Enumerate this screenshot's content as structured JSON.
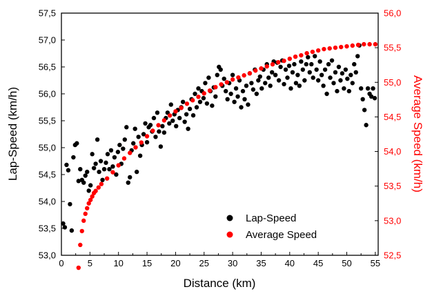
{
  "chart_data": {
    "type": "scatter",
    "xlabel": "Distance (km)",
    "ylabel": "Lap-Speed (km/h)",
    "y2label": "Average Speed (km/h)",
    "xlim": [
      0,
      55.5
    ],
    "ylim": [
      53.0,
      57.5
    ],
    "y2lim": [
      52.5,
      56.0
    ],
    "legend_position": "bottom-right",
    "grid": false,
    "x_ticks": [
      "0",
      "5",
      "10",
      "15",
      "20",
      "25",
      "30",
      "35",
      "40",
      "45",
      "50",
      "55"
    ],
    "y_ticks": [
      "53,0",
      "53,5",
      "54,0",
      "54,5",
      "55,0",
      "55,5",
      "56,0",
      "56,5",
      "57,0",
      "57,5"
    ],
    "y2_ticks": [
      "52,5",
      "53,0",
      "53,5",
      "54,0",
      "54,5",
      "55,0",
      "55,5",
      "56,0"
    ],
    "series": [
      {
        "name": "Lap-Speed",
        "axis": "left",
        "color": "#000000",
        "points": [
          [
            0.3,
            53.59
          ],
          [
            0.6,
            53.52
          ],
          [
            0.9,
            54.68
          ],
          [
            1.2,
            54.58
          ],
          [
            1.5,
            53.95
          ],
          [
            1.8,
            53.46
          ],
          [
            2.1,
            54.82
          ],
          [
            2.4,
            55.05
          ],
          [
            2.7,
            55.08
          ],
          [
            3.0,
            54.38
          ],
          [
            3.3,
            54.6
          ],
          [
            3.6,
            54.4
          ],
          [
            3.9,
            54.35
          ],
          [
            4.2,
            54.48
          ],
          [
            4.5,
            54.55
          ],
          [
            4.8,
            54.2
          ],
          [
            5.1,
            54.3
          ],
          [
            5.4,
            54.88
          ],
          [
            5.7,
            54.62
          ],
          [
            6.0,
            54.7
          ],
          [
            6.3,
            55.15
          ],
          [
            6.6,
            54.55
          ],
          [
            6.9,
            54.75
          ],
          [
            7.2,
            54.4
          ],
          [
            7.5,
            54.6
          ],
          [
            7.8,
            54.72
          ],
          [
            8.1,
            54.88
          ],
          [
            8.4,
            54.6
          ],
          [
            8.7,
            54.95
          ],
          [
            9.0,
            54.65
          ],
          [
            9.3,
            54.82
          ],
          [
            9.6,
            54.5
          ],
          [
            9.9,
            54.92
          ],
          [
            10.2,
            55.05
          ],
          [
            10.5,
            54.7
          ],
          [
            10.8,
            54.98
          ],
          [
            11.1,
            55.15
          ],
          [
            11.4,
            55.38
          ],
          [
            11.7,
            54.35
          ],
          [
            12.0,
            54.45
          ],
          [
            12.3,
            54.95
          ],
          [
            12.6,
            55.08
          ],
          [
            12.9,
            55.35
          ],
          [
            13.2,
            54.55
          ],
          [
            13.5,
            55.2
          ],
          [
            13.8,
            54.85
          ],
          [
            14.1,
            55.05
          ],
          [
            14.4,
            55.25
          ],
          [
            14.7,
            55.45
          ],
          [
            15.0,
            55.1
          ],
          [
            15.3,
            55.38
          ],
          [
            15.6,
            55.42
          ],
          [
            15.9,
            55.3
          ],
          [
            16.2,
            55.55
          ],
          [
            16.5,
            55.2
          ],
          [
            16.8,
            55.65
          ],
          [
            17.1,
            55.3
          ],
          [
            17.4,
            55.02
          ],
          [
            17.7,
            55.4
          ],
          [
            18.0,
            55.28
          ],
          [
            18.3,
            55.55
          ],
          [
            18.6,
            55.65
          ],
          [
            18.9,
            55.45
          ],
          [
            19.2,
            55.8
          ],
          [
            19.5,
            55.5
          ],
          [
            19.8,
            55.62
          ],
          [
            20.1,
            55.4
          ],
          [
            20.4,
            55.7
          ],
          [
            20.7,
            55.55
          ],
          [
            21.0,
            55.75
          ],
          [
            21.3,
            55.85
          ],
          [
            21.6,
            55.48
          ],
          [
            21.9,
            55.62
          ],
          [
            22.2,
            55.35
          ],
          [
            22.5,
            55.72
          ],
          [
            22.8,
            55.9
          ],
          [
            23.1,
            55.6
          ],
          [
            23.4,
            56.0
          ],
          [
            23.7,
            55.75
          ],
          [
            24.0,
            56.1
          ],
          [
            24.3,
            55.85
          ],
          [
            24.6,
            56.05
          ],
          [
            24.9,
            55.92
          ],
          [
            25.2,
            56.2
          ],
          [
            25.5,
            55.82
          ],
          [
            25.8,
            56.3
          ],
          [
            26.1,
            56.05
          ],
          [
            26.4,
            55.78
          ],
          [
            26.7,
            56.12
          ],
          [
            27.0,
            55.95
          ],
          [
            27.3,
            56.35
          ],
          [
            27.6,
            56.5
          ],
          [
            27.9,
            56.45
          ],
          [
            28.2,
            56.15
          ],
          [
            28.5,
            56.28
          ],
          [
            28.8,
            56.05
          ],
          [
            29.1,
            55.9
          ],
          [
            29.4,
            56.2
          ],
          [
            29.7,
            56.0
          ],
          [
            30.0,
            56.35
          ],
          [
            30.3,
            55.85
          ],
          [
            30.6,
            56.1
          ],
          [
            30.9,
            55.95
          ],
          [
            31.2,
            56.25
          ],
          [
            31.5,
            55.75
          ],
          [
            31.8,
            56.05
          ],
          [
            32.1,
            55.9
          ],
          [
            32.4,
            56.15
          ],
          [
            32.7,
            55.8
          ],
          [
            33.0,
            56.38
          ],
          [
            33.3,
            56.2
          ],
          [
            33.6,
            56.08
          ],
          [
            33.9,
            56.45
          ],
          [
            34.2,
            56.0
          ],
          [
            34.5,
            56.25
          ],
          [
            34.8,
            56.32
          ],
          [
            35.1,
            56.1
          ],
          [
            35.4,
            56.45
          ],
          [
            35.7,
            56.2
          ],
          [
            36.0,
            56.55
          ],
          [
            36.3,
            56.3
          ],
          [
            36.6,
            56.15
          ],
          [
            36.9,
            56.4
          ],
          [
            37.2,
            56.6
          ],
          [
            37.5,
            56.35
          ],
          [
            37.8,
            56.58
          ],
          [
            38.1,
            56.25
          ],
          [
            38.4,
            56.5
          ],
          [
            38.7,
            56.62
          ],
          [
            39.0,
            56.18
          ],
          [
            39.3,
            56.45
          ],
          [
            39.6,
            56.3
          ],
          [
            39.9,
            56.52
          ],
          [
            40.2,
            56.1
          ],
          [
            40.5,
            56.4
          ],
          [
            40.8,
            56.55
          ],
          [
            41.1,
            56.2
          ],
          [
            41.4,
            56.35
          ],
          [
            41.7,
            56.15
          ],
          [
            42.0,
            56.6
          ],
          [
            42.3,
            56.45
          ],
          [
            42.6,
            56.25
          ],
          [
            42.9,
            56.55
          ],
          [
            43.2,
            56.68
          ],
          [
            43.5,
            56.4
          ],
          [
            43.8,
            56.55
          ],
          [
            44.1,
            56.3
          ],
          [
            44.4,
            56.7
          ],
          [
            44.7,
            56.45
          ],
          [
            45.0,
            56.25
          ],
          [
            45.3,
            56.6
          ],
          [
            45.6,
            56.35
          ],
          [
            45.9,
            56.15
          ],
          [
            46.2,
            56.45
          ],
          [
            46.5,
            56.0
          ],
          [
            46.8,
            56.55
          ],
          [
            47.1,
            56.3
          ],
          [
            47.4,
            56.62
          ],
          [
            47.7,
            56.2
          ],
          [
            48.0,
            56.4
          ],
          [
            48.3,
            56.05
          ],
          [
            48.6,
            56.5
          ],
          [
            48.9,
            56.25
          ],
          [
            49.2,
            56.38
          ],
          [
            49.5,
            56.1
          ],
          [
            49.8,
            56.45
          ],
          [
            50.1,
            56.28
          ],
          [
            50.4,
            56.05
          ],
          [
            50.7,
            56.35
          ],
          [
            51.0,
            56.2
          ],
          [
            51.3,
            56.55
          ],
          [
            51.6,
            56.4
          ],
          [
            51.9,
            56.7
          ],
          [
            52.2,
            56.9
          ],
          [
            52.5,
            56.1
          ],
          [
            52.8,
            55.9
          ],
          [
            53.1,
            55.7
          ],
          [
            53.4,
            55.42
          ],
          [
            53.7,
            56.1
          ],
          [
            54.0,
            56.0
          ],
          [
            54.3,
            55.95
          ],
          [
            54.6,
            56.1
          ],
          [
            54.9,
            55.92
          ]
        ]
      },
      {
        "name": "Average Speed",
        "axis": "right",
        "color": "#ff0000",
        "points": [
          [
            3.0,
            52.32
          ],
          [
            3.3,
            52.65
          ],
          [
            3.6,
            52.85
          ],
          [
            3.9,
            53.0
          ],
          [
            4.2,
            53.1
          ],
          [
            4.5,
            53.18
          ],
          [
            4.8,
            53.25
          ],
          [
            5.1,
            53.3
          ],
          [
            5.4,
            53.35
          ],
          [
            5.7,
            53.4
          ],
          [
            6.0,
            53.43
          ],
          [
            6.5,
            53.48
          ],
          [
            7.0,
            53.53
          ],
          [
            8.0,
            53.61
          ],
          [
            9.0,
            53.7
          ],
          [
            10.0,
            53.8
          ],
          [
            11.0,
            53.9
          ],
          [
            12.0,
            53.98
          ],
          [
            13.0,
            54.06
          ],
          [
            14.0,
            54.13
          ],
          [
            15.0,
            54.22
          ],
          [
            16.0,
            54.3
          ],
          [
            17.0,
            54.38
          ],
          [
            18.0,
            54.45
          ],
          [
            19.0,
            54.52
          ],
          [
            20.0,
            54.58
          ],
          [
            21.0,
            54.63
          ],
          [
            22.0,
            54.69
          ],
          [
            23.0,
            54.74
          ],
          [
            24.0,
            54.79
          ],
          [
            25.0,
            54.84
          ],
          [
            26.0,
            54.88
          ],
          [
            27.0,
            54.93
          ],
          [
            28.0,
            54.97
          ],
          [
            29.0,
            55.0
          ],
          [
            30.0,
            55.04
          ],
          [
            31.0,
            55.07
          ],
          [
            32.0,
            55.1
          ],
          [
            33.0,
            55.13
          ],
          [
            34.0,
            55.17
          ],
          [
            35.0,
            55.2
          ],
          [
            36.0,
            55.23
          ],
          [
            37.0,
            55.26
          ],
          [
            38.0,
            55.29
          ],
          [
            39.0,
            55.31
          ],
          [
            40.0,
            55.34
          ],
          [
            41.0,
            55.37
          ],
          [
            42.0,
            55.39
          ],
          [
            43.0,
            55.42
          ],
          [
            44.0,
            55.44
          ],
          [
            45.0,
            55.46
          ],
          [
            46.0,
            55.48
          ],
          [
            47.0,
            55.49
          ],
          [
            48.0,
            55.5
          ],
          [
            49.0,
            55.51
          ],
          [
            50.0,
            55.52
          ],
          [
            51.0,
            55.53
          ],
          [
            52.0,
            55.54
          ],
          [
            53.0,
            55.55
          ],
          [
            54.0,
            55.55
          ],
          [
            55.0,
            55.55
          ]
        ]
      }
    ]
  }
}
